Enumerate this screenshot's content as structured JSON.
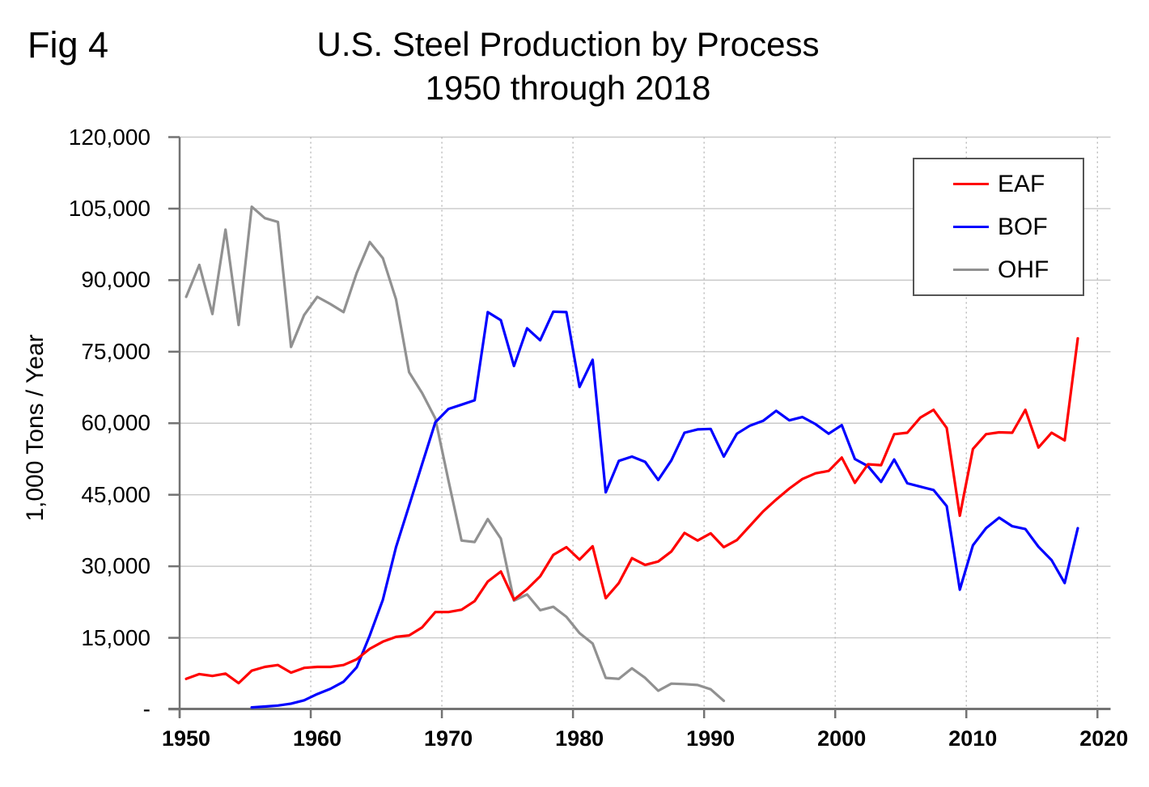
{
  "fig_label": "Fig 4",
  "header": {
    "title": "U.S. Steel Production by Process",
    "subtitle": "1950 through 2018"
  },
  "y_axis_title": "1,000 Tons / Year",
  "colors": {
    "eaf": "#ff0000",
    "bof": "#0000ff",
    "ohf": "#919191",
    "gridline": "#c9c9c9",
    "dotted_gridline": "#b8b8b8",
    "axis": "#737373",
    "text": "#000000",
    "legend_border": "#555555",
    "background": "#ffffff"
  },
  "legend": [
    {
      "label": "EAF",
      "color": "#ff0000"
    },
    {
      "label": "BOF",
      "color": "#0000ff"
    },
    {
      "label": "OHF",
      "color": "#919191"
    }
  ],
  "y_ticks": [
    {
      "value": 0,
      "label": "-"
    },
    {
      "value": 15000,
      "label": "15,000"
    },
    {
      "value": 30000,
      "label": "30,000"
    },
    {
      "value": 45000,
      "label": "45,000"
    },
    {
      "value": 60000,
      "label": "60,000"
    },
    {
      "value": 75000,
      "label": "75,000"
    },
    {
      "value": 90000,
      "label": "90,000"
    },
    {
      "value": 105000,
      "label": "105,000"
    },
    {
      "value": 120000,
      "label": "120,000"
    }
  ],
  "x_ticks": [
    {
      "year": 1950,
      "label": "1950"
    },
    {
      "year": 1960,
      "label": "1960"
    },
    {
      "year": 1970,
      "label": "1970"
    },
    {
      "year": 1980,
      "label": "1980"
    },
    {
      "year": 1990,
      "label": "1990"
    },
    {
      "year": 2000,
      "label": "2000"
    },
    {
      "year": 2010,
      "label": "2010"
    },
    {
      "year": 2020,
      "label": "2020"
    }
  ],
  "chart_data": {
    "type": "line",
    "title": "U.S. Steel Production by Process",
    "subtitle": "1950 through 2018",
    "xlabel": "",
    "ylabel": "1,000 Tons / Year",
    "ylim": [
      0,
      120000
    ],
    "y_step": 15000,
    "xlim": [
      1950,
      2020
    ],
    "x_axis_type": "category-centered",
    "grid": true,
    "legend_position": "top-right",
    "series": [
      {
        "name": "EAF",
        "color": "#ff0000",
        "start_year": 1950,
        "values": [
          6400,
          7400,
          7000,
          7500,
          5500,
          8100,
          8900,
          9300,
          7700,
          8700,
          8900,
          8900,
          9300,
          10500,
          12700,
          14200,
          15200,
          15500,
          17200,
          20400,
          20400,
          20900,
          22700,
          26800,
          28900,
          23000,
          25200,
          27900,
          32400,
          34000,
          31400,
          34200,
          23300,
          26500,
          31700,
          30300,
          31000,
          33100,
          37000,
          35400,
          36900,
          34000,
          35500,
          38500,
          41500,
          44000,
          46300,
          48300,
          49500,
          50000,
          52800,
          47500,
          51400,
          51200,
          57700,
          58000,
          61200,
          62800,
          59000,
          40600,
          54600,
          57700,
          58100,
          58000,
          62800,
          54900,
          58000,
          56400,
          77800
        ]
      },
      {
        "name": "BOF",
        "color": "#0000ff",
        "start_year": 1955,
        "values": [
          400,
          600,
          800,
          1200,
          1900,
          3200,
          4300,
          5800,
          8800,
          15500,
          23000,
          34000,
          42700,
          51500,
          60200,
          63000,
          63900,
          64800,
          83300,
          81600,
          72000,
          79900,
          77400,
          83400,
          83300,
          67600,
          73300,
          45500,
          52100,
          53000,
          51900,
          48100,
          52200,
          58000,
          58700,
          58800,
          53000,
          57800,
          59500,
          60500,
          62600,
          60600,
          61300,
          59800,
          57800,
          59600,
          52500,
          51000,
          47700,
          52400,
          47400,
          46700,
          46000,
          42600,
          25100,
          34400,
          38000,
          40200,
          38400,
          37800,
          34100,
          31300,
          26500,
          38000
        ]
      },
      {
        "name": "OHF",
        "color": "#919191",
        "start_year": 1950,
        "values": [
          86500,
          93200,
          82900,
          100600,
          80600,
          105400,
          103000,
          102200,
          76000,
          82700,
          86500,
          85000,
          83300,
          91500,
          98000,
          94600,
          86000,
          70700,
          66300,
          61000,
          48000,
          35400,
          35100,
          39900,
          35800,
          22800,
          24100,
          20800,
          21500,
          19400,
          16000,
          13800,
          6600,
          6400,
          8600,
          6600,
          3900,
          5400,
          5300,
          5100,
          4200,
          1800
        ]
      }
    ]
  }
}
